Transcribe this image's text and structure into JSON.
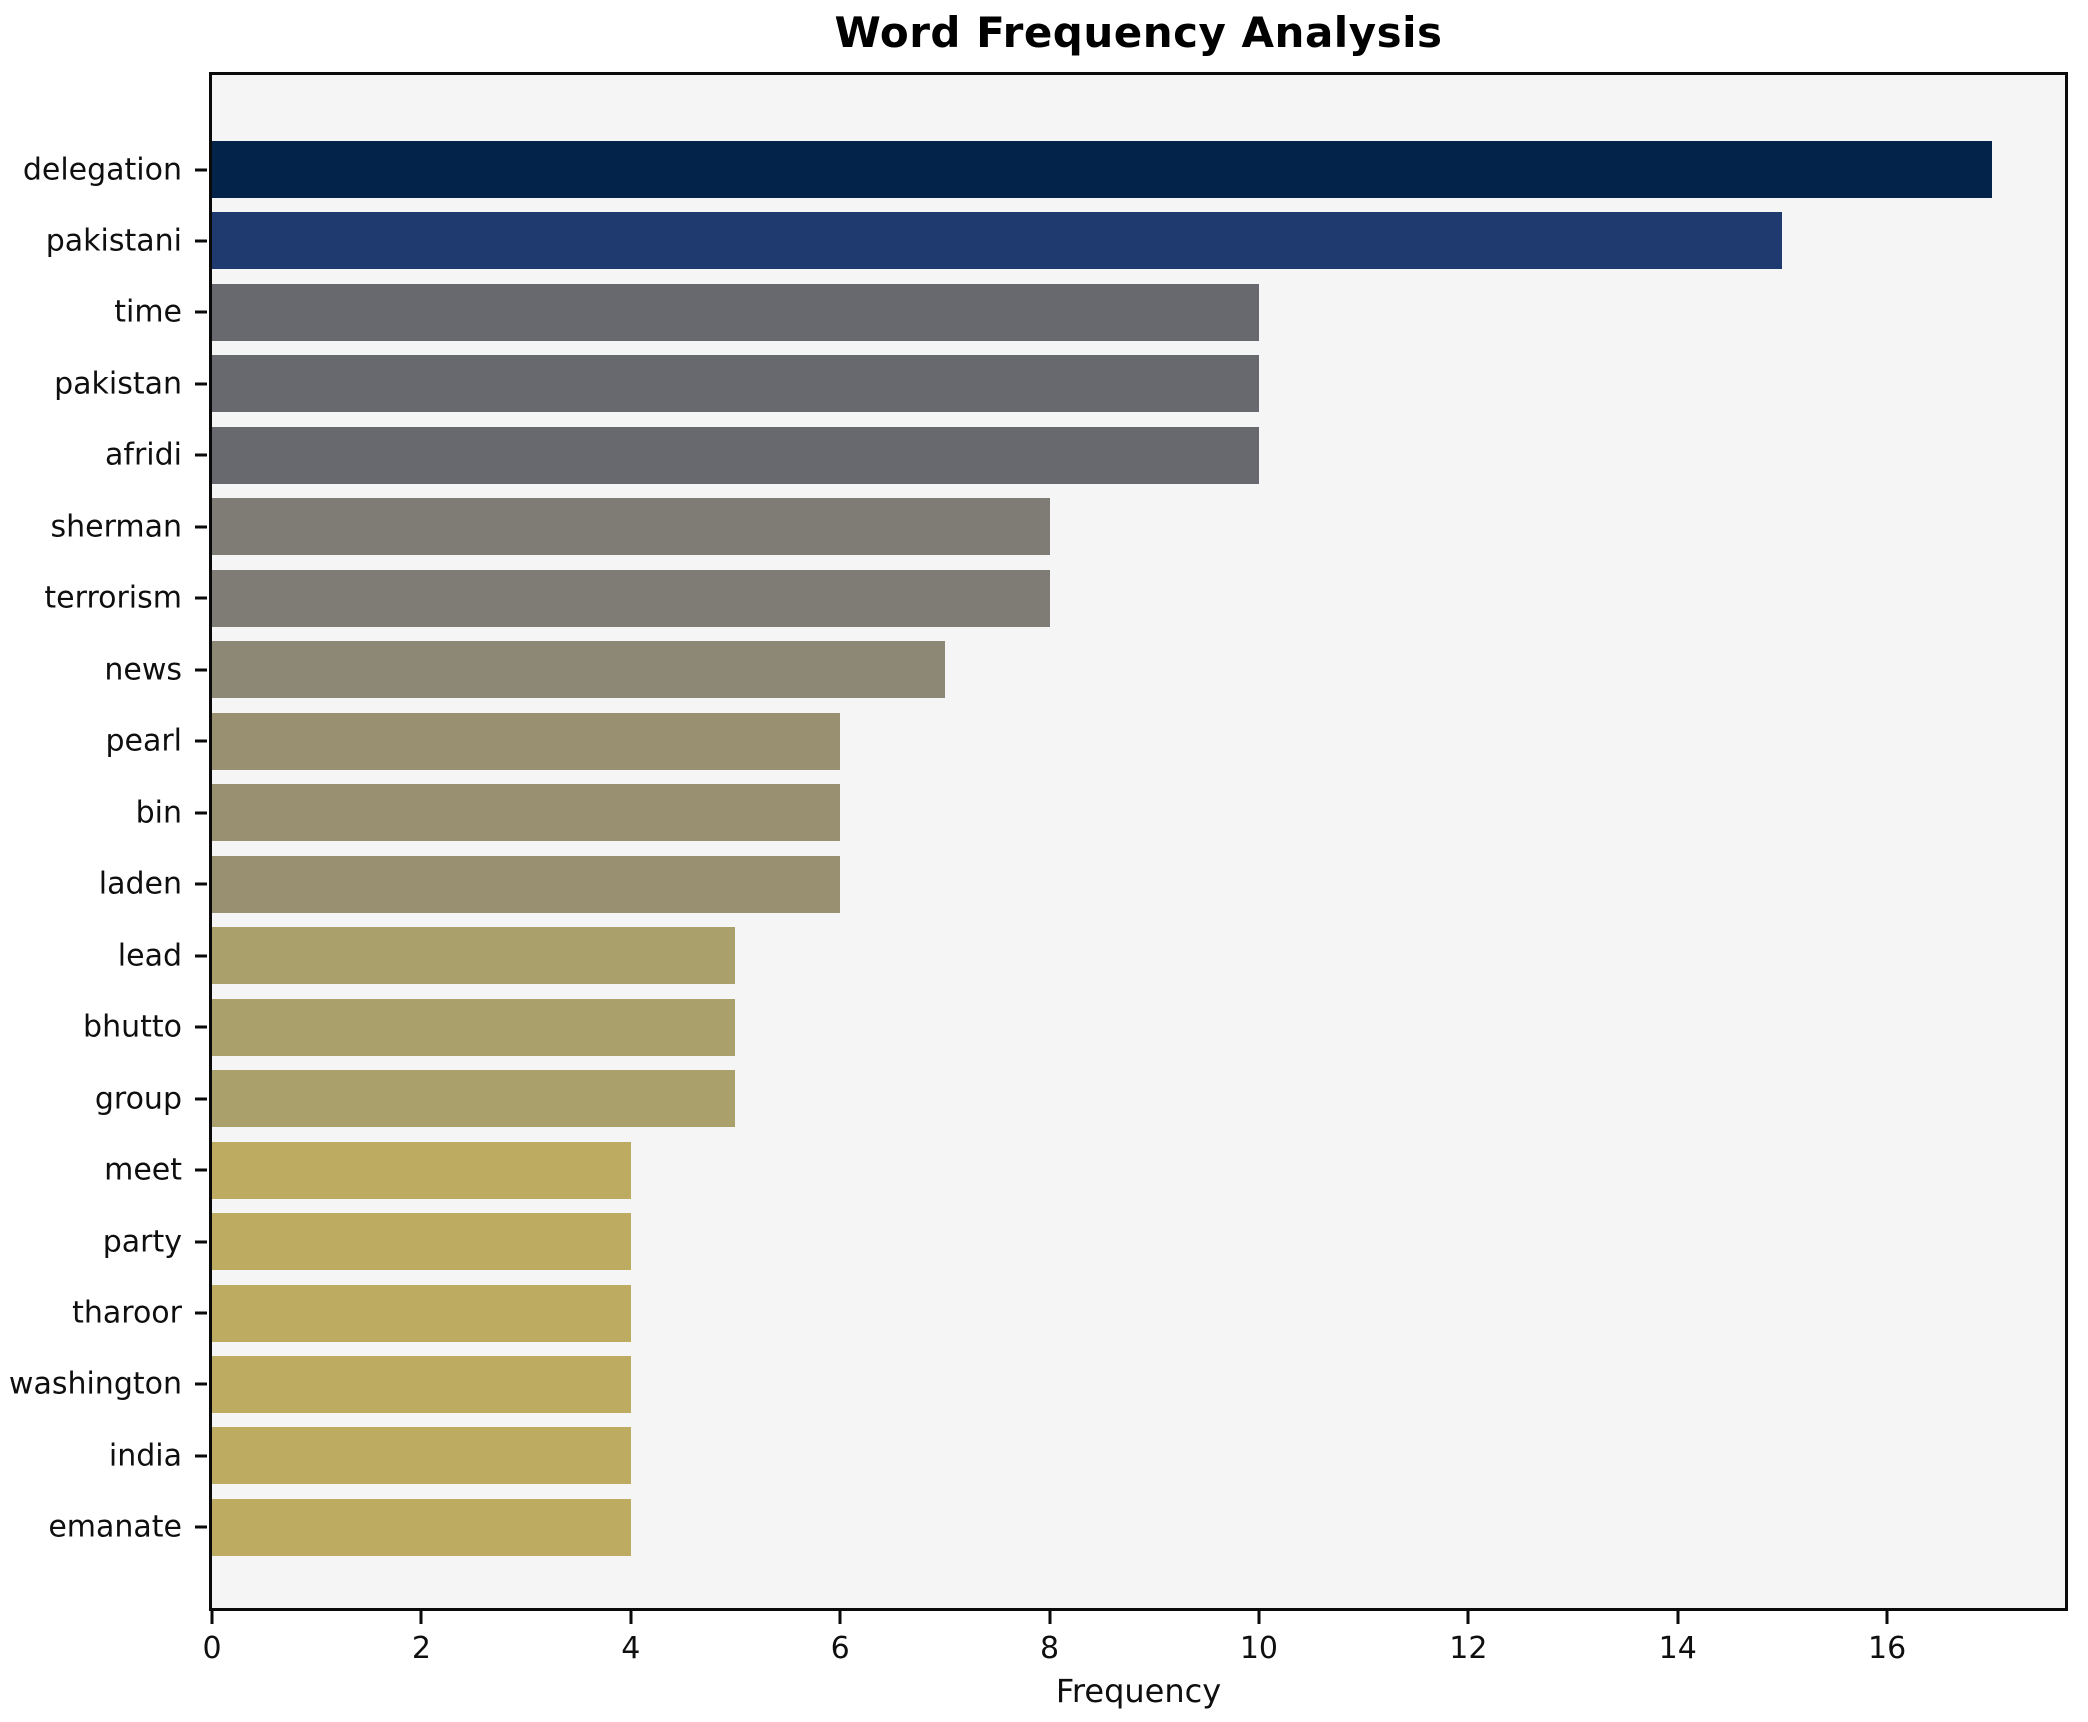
{
  "chart_data": {
    "type": "bar",
    "orientation": "horizontal",
    "title": "Word Frequency Analysis",
    "xlabel": "Frequency",
    "ylabel": "",
    "categories": [
      "delegation",
      "pakistani",
      "time",
      "pakistan",
      "afridi",
      "sherman",
      "terrorism",
      "news",
      "pearl",
      "bin",
      "laden",
      "lead",
      "bhutto",
      "group",
      "meet",
      "party",
      "tharoor",
      "washington",
      "india",
      "emanate"
    ],
    "values": [
      17,
      15,
      10,
      10,
      10,
      8,
      8,
      7,
      6,
      6,
      6,
      5,
      5,
      5,
      4,
      4,
      4,
      4,
      4,
      4
    ],
    "bar_colors": [
      "#03234b",
      "#1e3a6e",
      "#67696f",
      "#67696f",
      "#67696f",
      "#7f7c76",
      "#7f7c76",
      "#8d8775",
      "#989071",
      "#989071",
      "#989071",
      "#aaa06b",
      "#aaa06b",
      "#aaa06b",
      "#bcab60",
      "#bcab60",
      "#bcab60",
      "#bcab60",
      "#bcab60",
      "#bcab60"
    ],
    "xlim": [
      0,
      17.7
    ],
    "x_ticks": [
      0,
      2,
      4,
      6,
      8,
      10,
      12,
      14,
      16
    ],
    "grid": false,
    "legend": false,
    "plot_background": "#f5f5f6",
    "figure_background": "#ffffff"
  }
}
